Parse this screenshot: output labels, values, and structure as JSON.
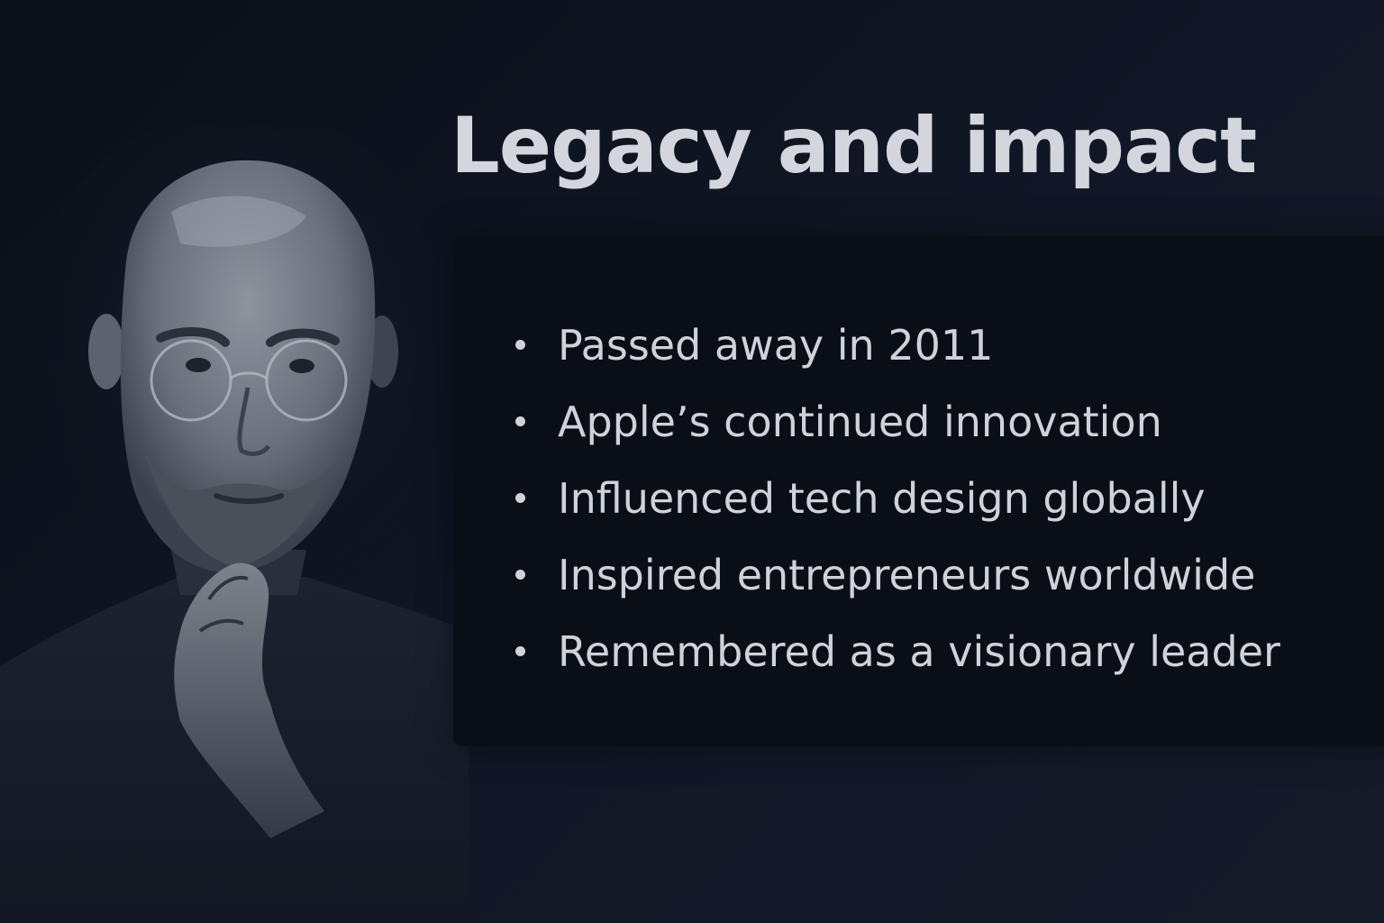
{
  "slide": {
    "title": "Legacy and impact",
    "bullets": [
      "Passed away in 2011",
      "Apple’s continued innovation",
      "Influenced tech design globally",
      "Inspired entrepreneurs worldwide",
      "Remembered as a visionary leader"
    ]
  },
  "colors": {
    "background": "#111726",
    "panel": "#0a0e17",
    "text": "#cfd2da"
  }
}
